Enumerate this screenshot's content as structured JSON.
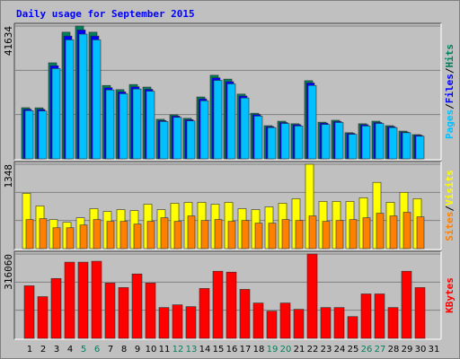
{
  "title": "Daily usage for September 2015",
  "legend_separator": "/",
  "highlight_categories": [
    "5",
    "6",
    "12",
    "13",
    "19",
    "20",
    "26",
    "27"
  ],
  "highlight_color": "#00805c",
  "chart_data": [
    {
      "type": "bar",
      "categories": [
        "1",
        "2",
        "3",
        "4",
        "5",
        "6",
        "7",
        "8",
        "9",
        "10",
        "11",
        "12",
        "13",
        "14",
        "15",
        "16",
        "17",
        "18",
        "19",
        "20",
        "21",
        "22",
        "23",
        "24",
        "25",
        "26",
        "27",
        "28",
        "29",
        "30",
        "31"
      ],
      "ylim": [
        0,
        41634
      ],
      "yticks": [
        41634
      ],
      "series": [
        {
          "name": "Hits",
          "color": "#00805c",
          "values": [
            16035,
            16000,
            30100,
            39700,
            41634,
            39700,
            23000,
            21700,
            23300,
            22500,
            12400,
            13800,
            12700,
            19400,
            26200,
            25000,
            20300,
            14300,
            10400,
            11800,
            11000,
            24500,
            11500,
            12100,
            8200,
            11000,
            11800,
            10400,
            8700,
            7600,
            0
          ]
        },
        {
          "name": "Files",
          "color": "#0000ff",
          "values": [
            15550,
            15500,
            29200,
            38500,
            40400,
            38500,
            22300,
            21000,
            22600,
            21800,
            12000,
            13400,
            12300,
            18800,
            25400,
            24200,
            19700,
            13900,
            10100,
            11400,
            10700,
            23800,
            11200,
            11700,
            8000,
            10700,
            11400,
            10100,
            8400,
            7400,
            0
          ]
        },
        {
          "name": "Pages",
          "color": "#00c0ff",
          "values": [
            15100,
            15000,
            28300,
            37300,
            39100,
            37300,
            21600,
            20400,
            21900,
            21200,
            11700,
            13000,
            11900,
            18200,
            24600,
            23500,
            19100,
            13400,
            9800,
            11100,
            10300,
            23000,
            10800,
            11400,
            7700,
            10300,
            11100,
            9800,
            8200,
            7100,
            0
          ]
        }
      ]
    },
    {
      "type": "bar",
      "categories": [
        "1",
        "2",
        "3",
        "4",
        "5",
        "6",
        "7",
        "8",
        "9",
        "10",
        "11",
        "12",
        "13",
        "14",
        "15",
        "16",
        "17",
        "18",
        "19",
        "20",
        "21",
        "22",
        "23",
        "24",
        "25",
        "26",
        "27",
        "28",
        "29",
        "30",
        "31"
      ],
      "ylim": [
        0,
        1348
      ],
      "yticks": [
        1348
      ],
      "series": [
        {
          "name": "Visits",
          "color": "#ffff00",
          "values": [
            884,
            681,
            464,
            420,
            493,
            638,
            594,
            623,
            609,
            710,
            623,
            725,
            739,
            739,
            710,
            739,
            638,
            623,
            667,
            725,
            797,
            1348,
            754,
            754,
            754,
            812,
            1058,
            739,
            899,
            797,
            0
          ]
        },
        {
          "name": "Sites",
          "color": "#ff8000",
          "values": [
            464,
            478,
            333,
            333,
            377,
            464,
            435,
            435,
            391,
            435,
            493,
            435,
            522,
            449,
            464,
            435,
            449,
            406,
            406,
            464,
            449,
            522,
            435,
            449,
            464,
            493,
            565,
            522,
            580,
            507,
            0
          ]
        }
      ]
    },
    {
      "type": "bar",
      "categories": [
        "1",
        "2",
        "3",
        "4",
        "5",
        "6",
        "7",
        "8",
        "9",
        "10",
        "11",
        "12",
        "13",
        "14",
        "15",
        "16",
        "17",
        "18",
        "19",
        "20",
        "21",
        "22",
        "23",
        "24",
        "25",
        "26",
        "27",
        "28",
        "29",
        "30",
        "31"
      ],
      "ylim": [
        0,
        316060
      ],
      "yticks": [
        316060
      ],
      "series": [
        {
          "name": "KBytes",
          "color": "#ff0000",
          "values": [
            197000,
            156300,
            224300,
            285500,
            285500,
            288900,
            207300,
            190300,
            241300,
            207300,
            115500,
            125700,
            118900,
            186900,
            251500,
            248100,
            183500,
            132500,
            102000,
            132500,
            108800,
            316060,
            115500,
            115500,
            81600,
            166500,
            166500,
            115500,
            251500,
            190300,
            0
          ]
        }
      ]
    }
  ]
}
